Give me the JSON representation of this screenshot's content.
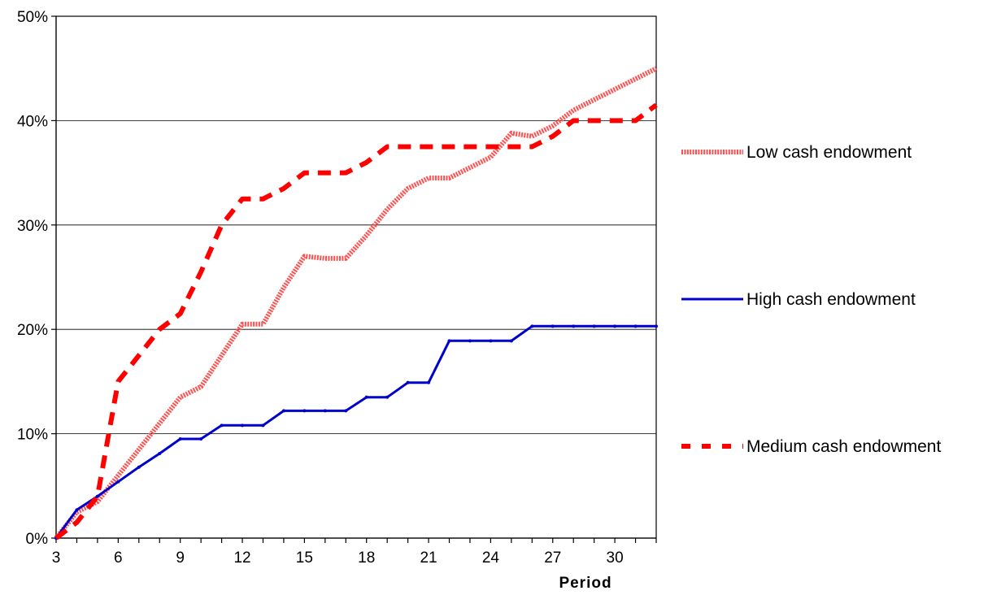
{
  "chart_data": {
    "type": "line",
    "title": "",
    "xlabel": "Period",
    "ylabel": "",
    "x_ticks": [
      "3",
      "6",
      "9",
      "12",
      "15",
      "18",
      "21",
      "24",
      "27",
      "30"
    ],
    "y_ticks": [
      "0%",
      "10%",
      "20%",
      "30%",
      "40%",
      "50%"
    ],
    "xlim": [
      3,
      32
    ],
    "ylim": [
      0,
      50
    ],
    "grid": "horizontal",
    "legend_position": "right",
    "series": [
      {
        "name": "Low cash endowment",
        "color": "#ff5050",
        "style": "thick-solid",
        "x": [
          3,
          4,
          5,
          6,
          7,
          8,
          9,
          10,
          11,
          12,
          13,
          14,
          15,
          16,
          17,
          18,
          19,
          20,
          21,
          22,
          23,
          24,
          25,
          26,
          27,
          28,
          29,
          30,
          31,
          32
        ],
        "values": [
          0,
          2.5,
          3.5,
          6,
          8.5,
          11,
          13.5,
          14.5,
          17.5,
          20.5,
          20.5,
          24,
          27,
          26.8,
          26.8,
          29,
          31.5,
          33.5,
          34.5,
          34.5,
          35.5,
          36.5,
          38.8,
          38.5,
          39.5,
          41,
          42,
          43,
          44,
          45
        ]
      },
      {
        "name": "High cash endowment",
        "color": "#0000cc",
        "style": "solid",
        "x": [
          3,
          4,
          5,
          6,
          7,
          8,
          9,
          10,
          11,
          12,
          13,
          14,
          15,
          16,
          17,
          18,
          19,
          20,
          21,
          22,
          23,
          24,
          25,
          26,
          27,
          28,
          29,
          30,
          31,
          32
        ],
        "values": [
          0,
          2.7,
          4,
          5.4,
          6.8,
          8.1,
          9.5,
          9.5,
          10.8,
          10.8,
          10.8,
          12.2,
          12.2,
          12.2,
          12.2,
          13.5,
          13.5,
          14.9,
          14.9,
          18.9,
          18.9,
          18.9,
          18.9,
          20.3,
          20.3,
          20.3,
          20.3,
          20.3,
          20.3,
          20.3
        ]
      },
      {
        "name": "Medium cash endowment",
        "color": "#ff0000",
        "style": "dashed",
        "x": [
          3,
          4,
          5,
          6,
          7,
          8,
          9,
          10,
          11,
          12,
          13,
          14,
          15,
          16,
          17,
          18,
          19,
          20,
          21,
          22,
          23,
          24,
          25,
          26,
          27,
          28,
          29,
          30,
          31,
          32
        ],
        "values": [
          0,
          1.5,
          4,
          15,
          17.5,
          20,
          21.5,
          25.5,
          30,
          32.5,
          32.5,
          33.5,
          35,
          35,
          35,
          36,
          37.5,
          37.5,
          37.5,
          37.5,
          37.5,
          37.5,
          37.5,
          37.5,
          38.5,
          40,
          40,
          40,
          40,
          41.5
        ]
      }
    ]
  }
}
